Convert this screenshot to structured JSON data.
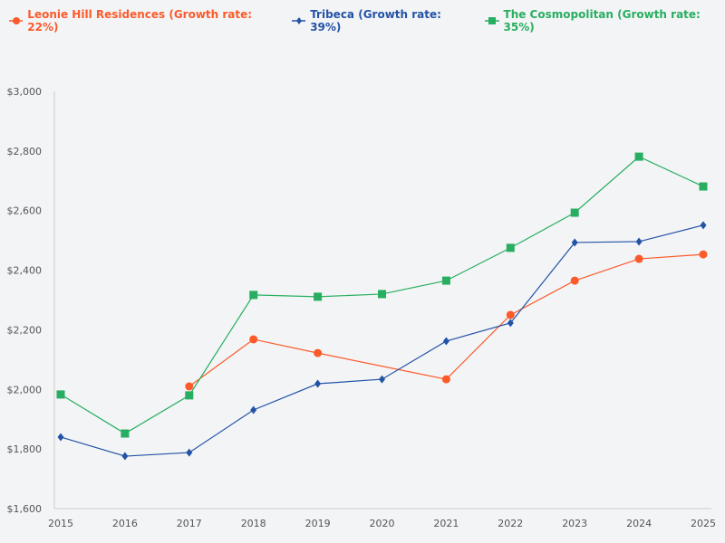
{
  "chart_data": {
    "type": "line",
    "title": "",
    "xlabel": "",
    "ylabel": "",
    "x": [
      2015,
      2016,
      2017,
      2018,
      2019,
      2020,
      2021,
      2022,
      2023,
      2024,
      2025
    ],
    "x_tick_labels": [
      "2015",
      "2016",
      "2017",
      "2018",
      "2019",
      "2020",
      "2021",
      "2022",
      "2023",
      "2024",
      "2025"
    ],
    "ylim": [
      1600,
      3000
    ],
    "y_ticks": [
      1600,
      1800,
      2000,
      2200,
      2400,
      2600,
      2800,
      3000
    ],
    "y_tick_labels": [
      "$1,600",
      "$1,800",
      "$2,000",
      "$2,200",
      "$2,400",
      "$2,600",
      "$2,800",
      "$3,000"
    ],
    "grid": false,
    "legend_position": "top-left",
    "series": [
      {
        "name": "Leonie Hill Residences (Growth rate: 22%)",
        "color": "#fc5a2a",
        "marker": "circle",
        "values": [
          null,
          null,
          2010,
          2168,
          2122,
          null,
          2034,
          2250,
          2365,
          2438,
          2453
        ]
      },
      {
        "name": "Tribeca (Growth rate: 39%)",
        "color": "#2353a5",
        "marker": "diamond",
        "values": [
          1840,
          1776,
          1788,
          1931,
          2019,
          2034,
          2162,
          2223,
          2493,
          2496,
          2551
        ]
      },
      {
        "name": "The Cosmopolitan (Growth rate: 35%)",
        "color": "#27ae60",
        "marker": "square",
        "values": [
          1983,
          1852,
          1980,
          2317,
          2311,
          2320,
          2365,
          2475,
          2593,
          2781,
          2681
        ]
      }
    ]
  }
}
